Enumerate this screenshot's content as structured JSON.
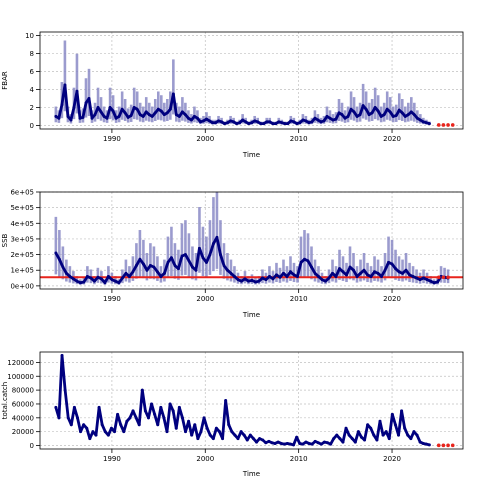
{
  "colors": {
    "series": "#00007f",
    "band": "#8a8ac6",
    "reference": "#e8241c",
    "forecast_points": "#e8241c",
    "grid": "#c0c0c0",
    "frame": "#000000"
  },
  "chart_data": [
    {
      "type": "line",
      "xlabel": "Time",
      "ylabel": "FBAR",
      "xlim": [
        1982.3,
        2027.6
      ],
      "ylim": [
        -0.4,
        10.4
      ],
      "x_ticks": [
        1990,
        2000,
        2010,
        2020
      ],
      "y_ticks": [
        0,
        2,
        4,
        6,
        8,
        10
      ],
      "y_tick_labels": [
        "0",
        "2",
        "4",
        "6",
        "8",
        "10"
      ],
      "grid": true,
      "has_band": true,
      "reference_line": null,
      "start_year": 1984,
      "end_year": 2024,
      "peak_years": [
        1985,
        1987,
        1989,
        1991,
        1993,
        1995,
        1998,
        2001,
        2004,
        2007,
        2010,
        2013,
        2016,
        2019,
        2022
      ],
      "series_median": [
        1.0,
        0.8,
        2.3,
        4.5,
        1.0,
        0.6,
        2.0,
        3.8,
        0.8,
        0.9,
        2.5,
        3.0,
        0.8,
        1.2,
        2.0,
        1.5,
        1.0,
        0.8,
        2.0,
        1.6,
        0.8,
        1.0,
        1.8,
        1.4,
        0.9,
        1.1,
        2.0,
        1.8,
        1.2,
        1.0,
        1.5,
        1.2,
        1.0,
        1.4,
        1.8,
        1.6,
        1.2,
        1.4,
        1.8,
        3.5,
        1.2,
        1.0,
        1.5,
        1.2,
        0.8,
        0.6,
        1.0,
        0.8,
        0.4,
        0.5,
        0.7,
        0.5,
        0.3,
        0.3,
        0.5,
        0.4,
        0.2,
        0.3,
        0.5,
        0.4,
        0.2,
        0.3,
        0.6,
        0.4,
        0.2,
        0.3,
        0.5,
        0.4,
        0.2,
        0.2,
        0.4,
        0.4,
        0.2,
        0.2,
        0.4,
        0.3,
        0.2,
        0.2,
        0.5,
        0.4,
        0.2,
        0.3,
        0.6,
        0.5,
        0.3,
        0.4,
        0.8,
        0.6,
        0.4,
        0.5,
        1.0,
        0.8,
        0.6,
        0.7,
        1.4,
        1.2,
        0.8,
        1.0,
        1.8,
        1.5,
        1.0,
        1.2,
        2.2,
        1.8,
        1.2,
        1.4,
        2.0,
        1.6,
        1.0,
        1.2,
        1.8,
        1.5,
        1.0,
        1.1,
        1.7,
        1.4,
        1.0,
        1.2,
        1.5,
        1.2,
        0.8,
        0.6,
        0.4,
        0.3,
        0.2
      ],
      "forecast_points": [
        [
          2025.0,
          0.05
        ],
        [
          2025.5,
          0.05
        ],
        [
          2026.0,
          0.05
        ],
        [
          2026.5,
          0.05
        ]
      ]
    },
    {
      "type": "line",
      "xlabel": "Time",
      "ylabel": "SSB",
      "xlim": [
        1982.3,
        2027.6
      ],
      "ylim": [
        -20000,
        600000
      ],
      "x_ticks": [
        1990,
        2000,
        2010,
        2020
      ],
      "y_ticks": [
        0,
        100000,
        200000,
        300000,
        400000,
        500000,
        600000
      ],
      "y_tick_labels": [
        "0e+00",
        "1e+05",
        "2e+05",
        "3e+05",
        "4e+05",
        "5e+05",
        "6e+05"
      ],
      "grid": true,
      "has_band": true,
      "reference_line": 55000,
      "start_year": 1984,
      "end_year": 2026,
      "series_median": [
        210000,
        170000,
        120000,
        80000,
        60000,
        45000,
        30000,
        20000,
        25000,
        60000,
        50000,
        30000,
        55000,
        45000,
        20000,
        60000,
        40000,
        30000,
        20000,
        50000,
        80000,
        60000,
        90000,
        130000,
        170000,
        140000,
        100000,
        130000,
        120000,
        90000,
        60000,
        80000,
        150000,
        180000,
        130000,
        110000,
        190000,
        200000,
        160000,
        120000,
        100000,
        240000,
        180000,
        150000,
        200000,
        270000,
        310000,
        200000,
        130000,
        100000,
        80000,
        60000,
        40000,
        30000,
        45000,
        30000,
        35000,
        25000,
        30000,
        50000,
        40000,
        60000,
        45000,
        70000,
        55000,
        80000,
        60000,
        90000,
        70000,
        60000,
        150000,
        170000,
        160000,
        120000,
        80000,
        60000,
        40000,
        30000,
        50000,
        80000,
        60000,
        110000,
        90000,
        70000,
        120000,
        100000,
        60000,
        80000,
        100000,
        70000,
        60000,
        90000,
        80000,
        60000,
        100000,
        150000,
        140000,
        110000,
        90000,
        80000,
        100000,
        70000,
        60000,
        50000,
        40000,
        50000,
        40000,
        30000,
        20000,
        25000,
        60000,
        55000,
        50000
      ],
      "forecast_points": [
        [
          2025.0,
          55000
        ],
        [
          2025.5,
          55000
        ],
        [
          2026.0,
          55000
        ]
      ]
    },
    {
      "type": "line",
      "xlabel": "Time",
      "ylabel": "total.catch",
      "xlim": [
        1982.3,
        2027.6
      ],
      "ylim": [
        -5000,
        135000
      ],
      "x_ticks": [
        1990,
        2000,
        2010,
        2020
      ],
      "y_ticks": [
        0,
        20000,
        40000,
        60000,
        80000,
        100000,
        120000
      ],
      "y_tick_labels": [
        "0",
        "20000",
        "40000",
        "60000",
        "80000",
        "100000",
        "120000"
      ],
      "grid": true,
      "has_band": false,
      "reference_line": null,
      "start_year": 1984,
      "end_year": 2024,
      "series_median": [
        55000,
        40000,
        130000,
        80000,
        40000,
        30000,
        55000,
        40000,
        20000,
        30000,
        25000,
        10000,
        20000,
        15000,
        55000,
        30000,
        20000,
        15000,
        25000,
        20000,
        45000,
        30000,
        20000,
        35000,
        40000,
        50000,
        40000,
        30000,
        80000,
        50000,
        40000,
        60000,
        45000,
        30000,
        55000,
        40000,
        20000,
        60000,
        50000,
        25000,
        55000,
        40000,
        20000,
        35000,
        15000,
        30000,
        10000,
        20000,
        40000,
        25000,
        15000,
        10000,
        25000,
        20000,
        10000,
        65000,
        30000,
        20000,
        15000,
        10000,
        20000,
        15000,
        8000,
        15000,
        10000,
        5000,
        10000,
        8000,
        4000,
        6000,
        4000,
        3000,
        5000,
        3000,
        2000,
        3000,
        2000,
        1000,
        12000,
        3000,
        2000,
        5000,
        3000,
        2000,
        6000,
        4000,
        2000,
        5000,
        4000,
        2000,
        10000,
        15000,
        10000,
        5000,
        25000,
        15000,
        10000,
        5000,
        20000,
        12000,
        8000,
        30000,
        25000,
        15000,
        8000,
        35000,
        15000,
        20000,
        10000,
        45000,
        30000,
        15000,
        50000,
        25000,
        15000,
        10000,
        20000,
        15000,
        5000,
        3000,
        2000,
        1000
      ],
      "forecast_points": [
        [
          2025.0,
          300
        ],
        [
          2025.5,
          300
        ],
        [
          2026.0,
          300
        ],
        [
          2026.5,
          300
        ]
      ]
    }
  ]
}
